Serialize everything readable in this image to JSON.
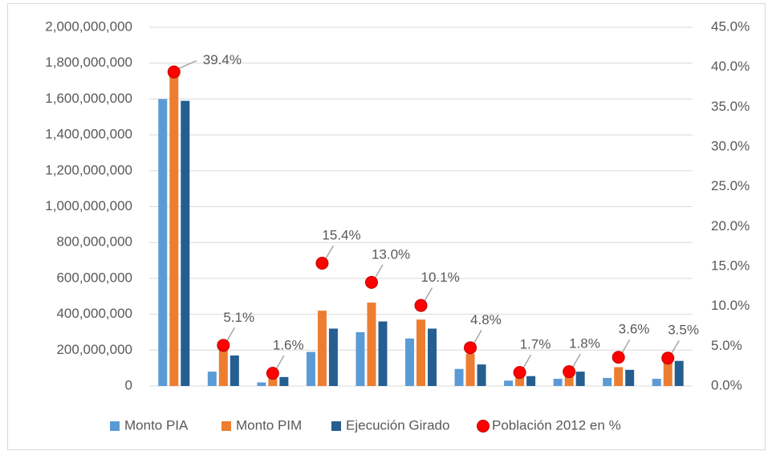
{
  "chart_data": {
    "type": "bar",
    "categories": [
      null,
      null,
      null,
      null,
      null,
      null,
      null,
      null,
      null,
      null,
      null
    ],
    "series": [
      {
        "name": "Monto PIA",
        "color": "#5b9bd5",
        "values": [
          1600000000,
          80000000,
          20000000,
          190000000,
          300000000,
          265000000,
          95000000,
          30000000,
          40000000,
          45000000,
          40000000
        ]
      },
      {
        "name": "Monto PIM",
        "color": "#ed7d31",
        "values": [
          1760000000,
          200000000,
          90000000,
          420000000,
          465000000,
          370000000,
          180000000,
          70000000,
          70000000,
          105000000,
          140000000
        ]
      },
      {
        "name": "Ejecución Girado",
        "color": "#255e91",
        "values": [
          1590000000,
          170000000,
          50000000,
          320000000,
          360000000,
          320000000,
          120000000,
          55000000,
          80000000,
          90000000,
          140000000
        ]
      },
      {
        "name": "Población 2012 en %",
        "color": "#ff0000",
        "axis": "y2",
        "values": [
          39.4,
          5.1,
          1.6,
          15.4,
          13.0,
          10.1,
          4.8,
          1.7,
          1.8,
          3.6,
          3.5
        ],
        "value_labels": [
          "39.4%",
          "5.1%",
          "1.6%",
          "15.4%",
          "13.0%",
          "10.1%",
          "4.8%",
          "1.7%",
          "1.8%",
          "3.6%",
          "3.5%"
        ]
      }
    ],
    "ylim": [
      0,
      2000000000
    ],
    "yticks": [
      {
        "value": 0,
        "label": "0"
      },
      {
        "value": 200000000,
        "label": "200,000,000"
      },
      {
        "value": 400000000,
        "label": "400,000,000"
      },
      {
        "value": 600000000,
        "label": "600,000,000"
      },
      {
        "value": 800000000,
        "label": "800,000,000"
      },
      {
        "value": 1000000000,
        "label": "1,000,000,000"
      },
      {
        "value": 1200000000,
        "label": "1,200,000,000"
      },
      {
        "value": 1400000000,
        "label": "1,400,000,000"
      },
      {
        "value": 1600000000,
        "label": "1,600,000,000"
      },
      {
        "value": 1800000000,
        "label": "1,800,000,000"
      },
      {
        "value": 2000000000,
        "label": "2,000,000,000"
      }
    ],
    "y2lim": [
      0,
      45
    ],
    "y2ticks": [
      {
        "value": 0,
        "label": "0.0%"
      },
      {
        "value": 5,
        "label": "5.0%"
      },
      {
        "value": 10,
        "label": "10.0%"
      },
      {
        "value": 15,
        "label": "15.0%"
      },
      {
        "value": 20,
        "label": "20.0%"
      },
      {
        "value": 25,
        "label": "25.0%"
      },
      {
        "value": 30,
        "label": "30.0%"
      },
      {
        "value": 35,
        "label": "35.0%"
      },
      {
        "value": 40,
        "label": "40.0%"
      },
      {
        "value": 45,
        "label": "45.0%"
      }
    ],
    "grid": true,
    "legend": "bottom"
  }
}
